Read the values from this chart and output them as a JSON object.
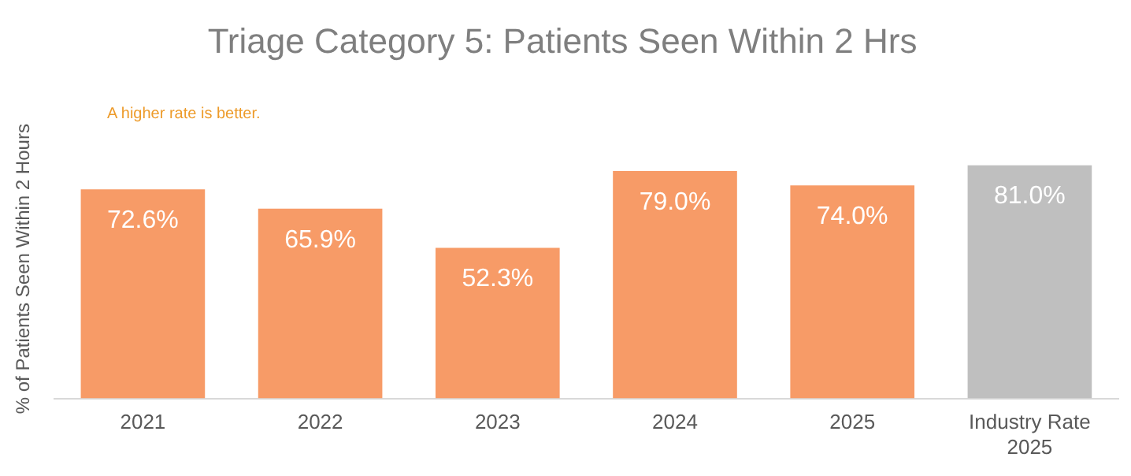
{
  "chart_data": {
    "type": "bar",
    "title": "Triage Category 5: Patients Seen Within 2 Hrs",
    "ylabel": "% of Patients Seen Within 2 Hours",
    "annotations": [
      "A higher rate is better."
    ],
    "categories": [
      "2021",
      "2022",
      "2023",
      "2024",
      "2025",
      "Industry Rate 2025"
    ],
    "values": [
      72.6,
      65.9,
      52.3,
      79.0,
      74.0,
      81.0
    ],
    "colors": [
      "#f79b67",
      "#f79b67",
      "#f79b67",
      "#f79b67",
      "#f79b67",
      "#bfbfbf"
    ],
    "value_labels": [
      "72.6%",
      "65.9%",
      "52.3%",
      "79.0%",
      "74.0%",
      "81.0%"
    ],
    "grid": false,
    "legend": false
  }
}
